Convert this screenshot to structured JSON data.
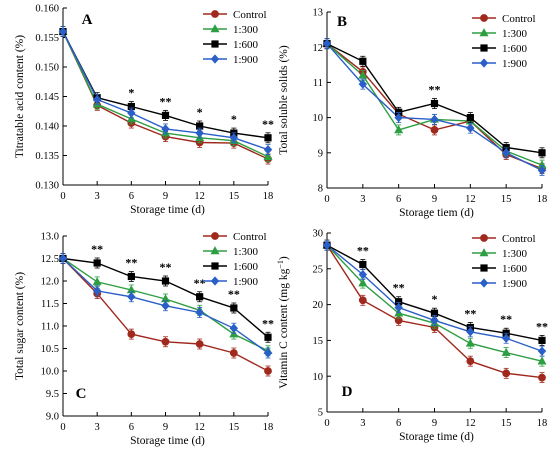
{
  "chart_data": [
    {
      "type": "line",
      "panel": "A",
      "xlabel": "Storage time (d)",
      "ylabel": "Titratable acid content (%)",
      "x": [
        0,
        3,
        6,
        9,
        12,
        15,
        18
      ],
      "xlim": [
        0,
        18
      ],
      "ylim": [
        0.13,
        0.16
      ],
      "yticks": [
        "0.130",
        "0.135",
        "0.140",
        "0.145",
        "0.150",
        "0.155",
        "0.160"
      ],
      "yticks_values": [
        0.13,
        0.135,
        0.14,
        0.145,
        0.15,
        0.155,
        0.16
      ],
      "legend": "top-right",
      "significance": [
        {
          "x": 6,
          "label": "*"
        },
        {
          "x": 9,
          "label": "**"
        },
        {
          "x": 12,
          "label": "*"
        },
        {
          "x": 15,
          "label": "*"
        },
        {
          "x": 18,
          "label": "**"
        }
      ],
      "series": [
        {
          "name": "Control",
          "values": [
            0.156,
            0.1435,
            0.1405,
            0.1382,
            0.1372,
            0.1371,
            0.1344
          ]
        },
        {
          "name": "1:300",
          "values": [
            0.156,
            0.1437,
            0.1412,
            0.1388,
            0.138,
            0.1375,
            0.1348
          ]
        },
        {
          "name": "1:600",
          "values": [
            0.156,
            0.1448,
            0.1433,
            0.1418,
            0.14,
            0.1388,
            0.138
          ]
        },
        {
          "name": "1:900",
          "values": [
            0.156,
            0.1445,
            0.1422,
            0.1395,
            0.1388,
            0.138,
            0.136
          ]
        }
      ]
    },
    {
      "type": "line",
      "panel": "B",
      "xlabel": "Storage tiem (d)",
      "ylabel": "Total soluble solids (%)",
      "x": [
        0,
        3,
        6,
        9,
        12,
        15,
        18
      ],
      "xlim": [
        0,
        18
      ],
      "ylim": [
        8,
        13
      ],
      "yticks": [
        "8",
        "9",
        "10",
        "11",
        "12",
        "13"
      ],
      "yticks_values": [
        8,
        9,
        10,
        11,
        12,
        13
      ],
      "legend": "top-right",
      "significance": [
        {
          "x": 9,
          "label": "**"
        }
      ],
      "series": [
        {
          "name": "Control",
          "values": [
            12.1,
            11.3,
            10.1,
            9.65,
            9.9,
            8.95,
            8.55
          ]
        },
        {
          "name": "1:300",
          "values": [
            12.1,
            11.2,
            9.65,
            9.95,
            9.9,
            9.05,
            8.65
          ]
        },
        {
          "name": "1:600",
          "values": [
            12.1,
            11.6,
            10.15,
            10.4,
            10.0,
            9.15,
            9.0
          ]
        },
        {
          "name": "1:900",
          "values": [
            12.1,
            10.95,
            10.0,
            9.95,
            9.7,
            9.0,
            8.5
          ]
        }
      ]
    },
    {
      "type": "line",
      "panel": "C",
      "xlabel": "Storage time (d)",
      "ylabel": "Total sugar content (%)",
      "x": [
        0,
        3,
        6,
        9,
        12,
        15,
        18
      ],
      "xlim": [
        0,
        18
      ],
      "ylim": [
        9.0,
        13.0
      ],
      "yticks": [
        "9.0",
        "9.5",
        "10.0",
        "10.5",
        "11.0",
        "11.5",
        "12.0",
        "12.5",
        "13.0"
      ],
      "yticks_values": [
        9.0,
        9.5,
        10.0,
        10.5,
        11.0,
        11.5,
        12.0,
        12.5,
        13.0
      ],
      "legend": "top-right",
      "significance": [
        {
          "x": 3,
          "label": "**"
        },
        {
          "x": 6,
          "label": "**"
        },
        {
          "x": 9,
          "label": "**"
        },
        {
          "x": 12,
          "label": "**"
        },
        {
          "x": 15,
          "label": "**"
        },
        {
          "x": 18,
          "label": "**"
        }
      ],
      "series": [
        {
          "name": "Control",
          "values": [
            12.5,
            11.72,
            10.82,
            10.65,
            10.6,
            10.4,
            10.0
          ]
        },
        {
          "name": "1:300",
          "values": [
            12.5,
            11.98,
            11.8,
            11.6,
            11.35,
            10.82,
            10.45
          ]
        },
        {
          "name": "1:600",
          "values": [
            12.5,
            12.4,
            12.1,
            12.0,
            11.65,
            11.4,
            10.75
          ]
        },
        {
          "name": "1:900",
          "values": [
            12.5,
            11.78,
            11.65,
            11.45,
            11.3,
            10.95,
            10.4
          ]
        }
      ]
    },
    {
      "type": "line",
      "panel": "D",
      "xlabel": "Storage time (d)",
      "ylabel": "Vitamin C content (mg kg",
      "ylabel_sup": "−1",
      "ylabel_end": ")",
      "x": [
        0,
        3,
        6,
        9,
        12,
        15,
        18
      ],
      "xlim": [
        0,
        18
      ],
      "ylim": [
        5,
        30
      ],
      "yticks": [
        "5",
        "10",
        "15",
        "20",
        "25",
        "30"
      ],
      "yticks_values": [
        5,
        10,
        15,
        20,
        25,
        30
      ],
      "legend": "top-right",
      "significance": [
        {
          "x": 3,
          "label": "**"
        },
        {
          "x": 6,
          "label": "**"
        },
        {
          "x": 9,
          "label": "*"
        },
        {
          "x": 12,
          "label": "**"
        },
        {
          "x": 15,
          "label": "**"
        },
        {
          "x": 18,
          "label": "**"
        }
      ],
      "series": [
        {
          "name": "Control",
          "values": [
            28.3,
            20.6,
            17.8,
            16.8,
            12.1,
            10.4,
            9.8
          ]
        },
        {
          "name": "1:300",
          "values": [
            28.3,
            23.0,
            18.8,
            17.4,
            14.6,
            13.3,
            12.1
          ]
        },
        {
          "name": "1:600",
          "values": [
            28.3,
            25.6,
            20.4,
            18.8,
            16.8,
            16.0,
            15.0
          ]
        },
        {
          "name": "1:900",
          "values": [
            28.3,
            24.2,
            19.6,
            17.8,
            16.2,
            15.3,
            13.5
          ]
        }
      ]
    }
  ],
  "series_styles": {
    "Control": {
      "color": "#a0281c",
      "marker": "circle-marker-icon"
    },
    "1:300": {
      "color": "#2e9e42",
      "marker": "triangle-marker-icon"
    },
    "1:600": {
      "color": "#000000",
      "marker": "square-marker-icon"
    },
    "1:900": {
      "color": "#2a5fc8",
      "marker": "diamond-marker-icon"
    }
  }
}
